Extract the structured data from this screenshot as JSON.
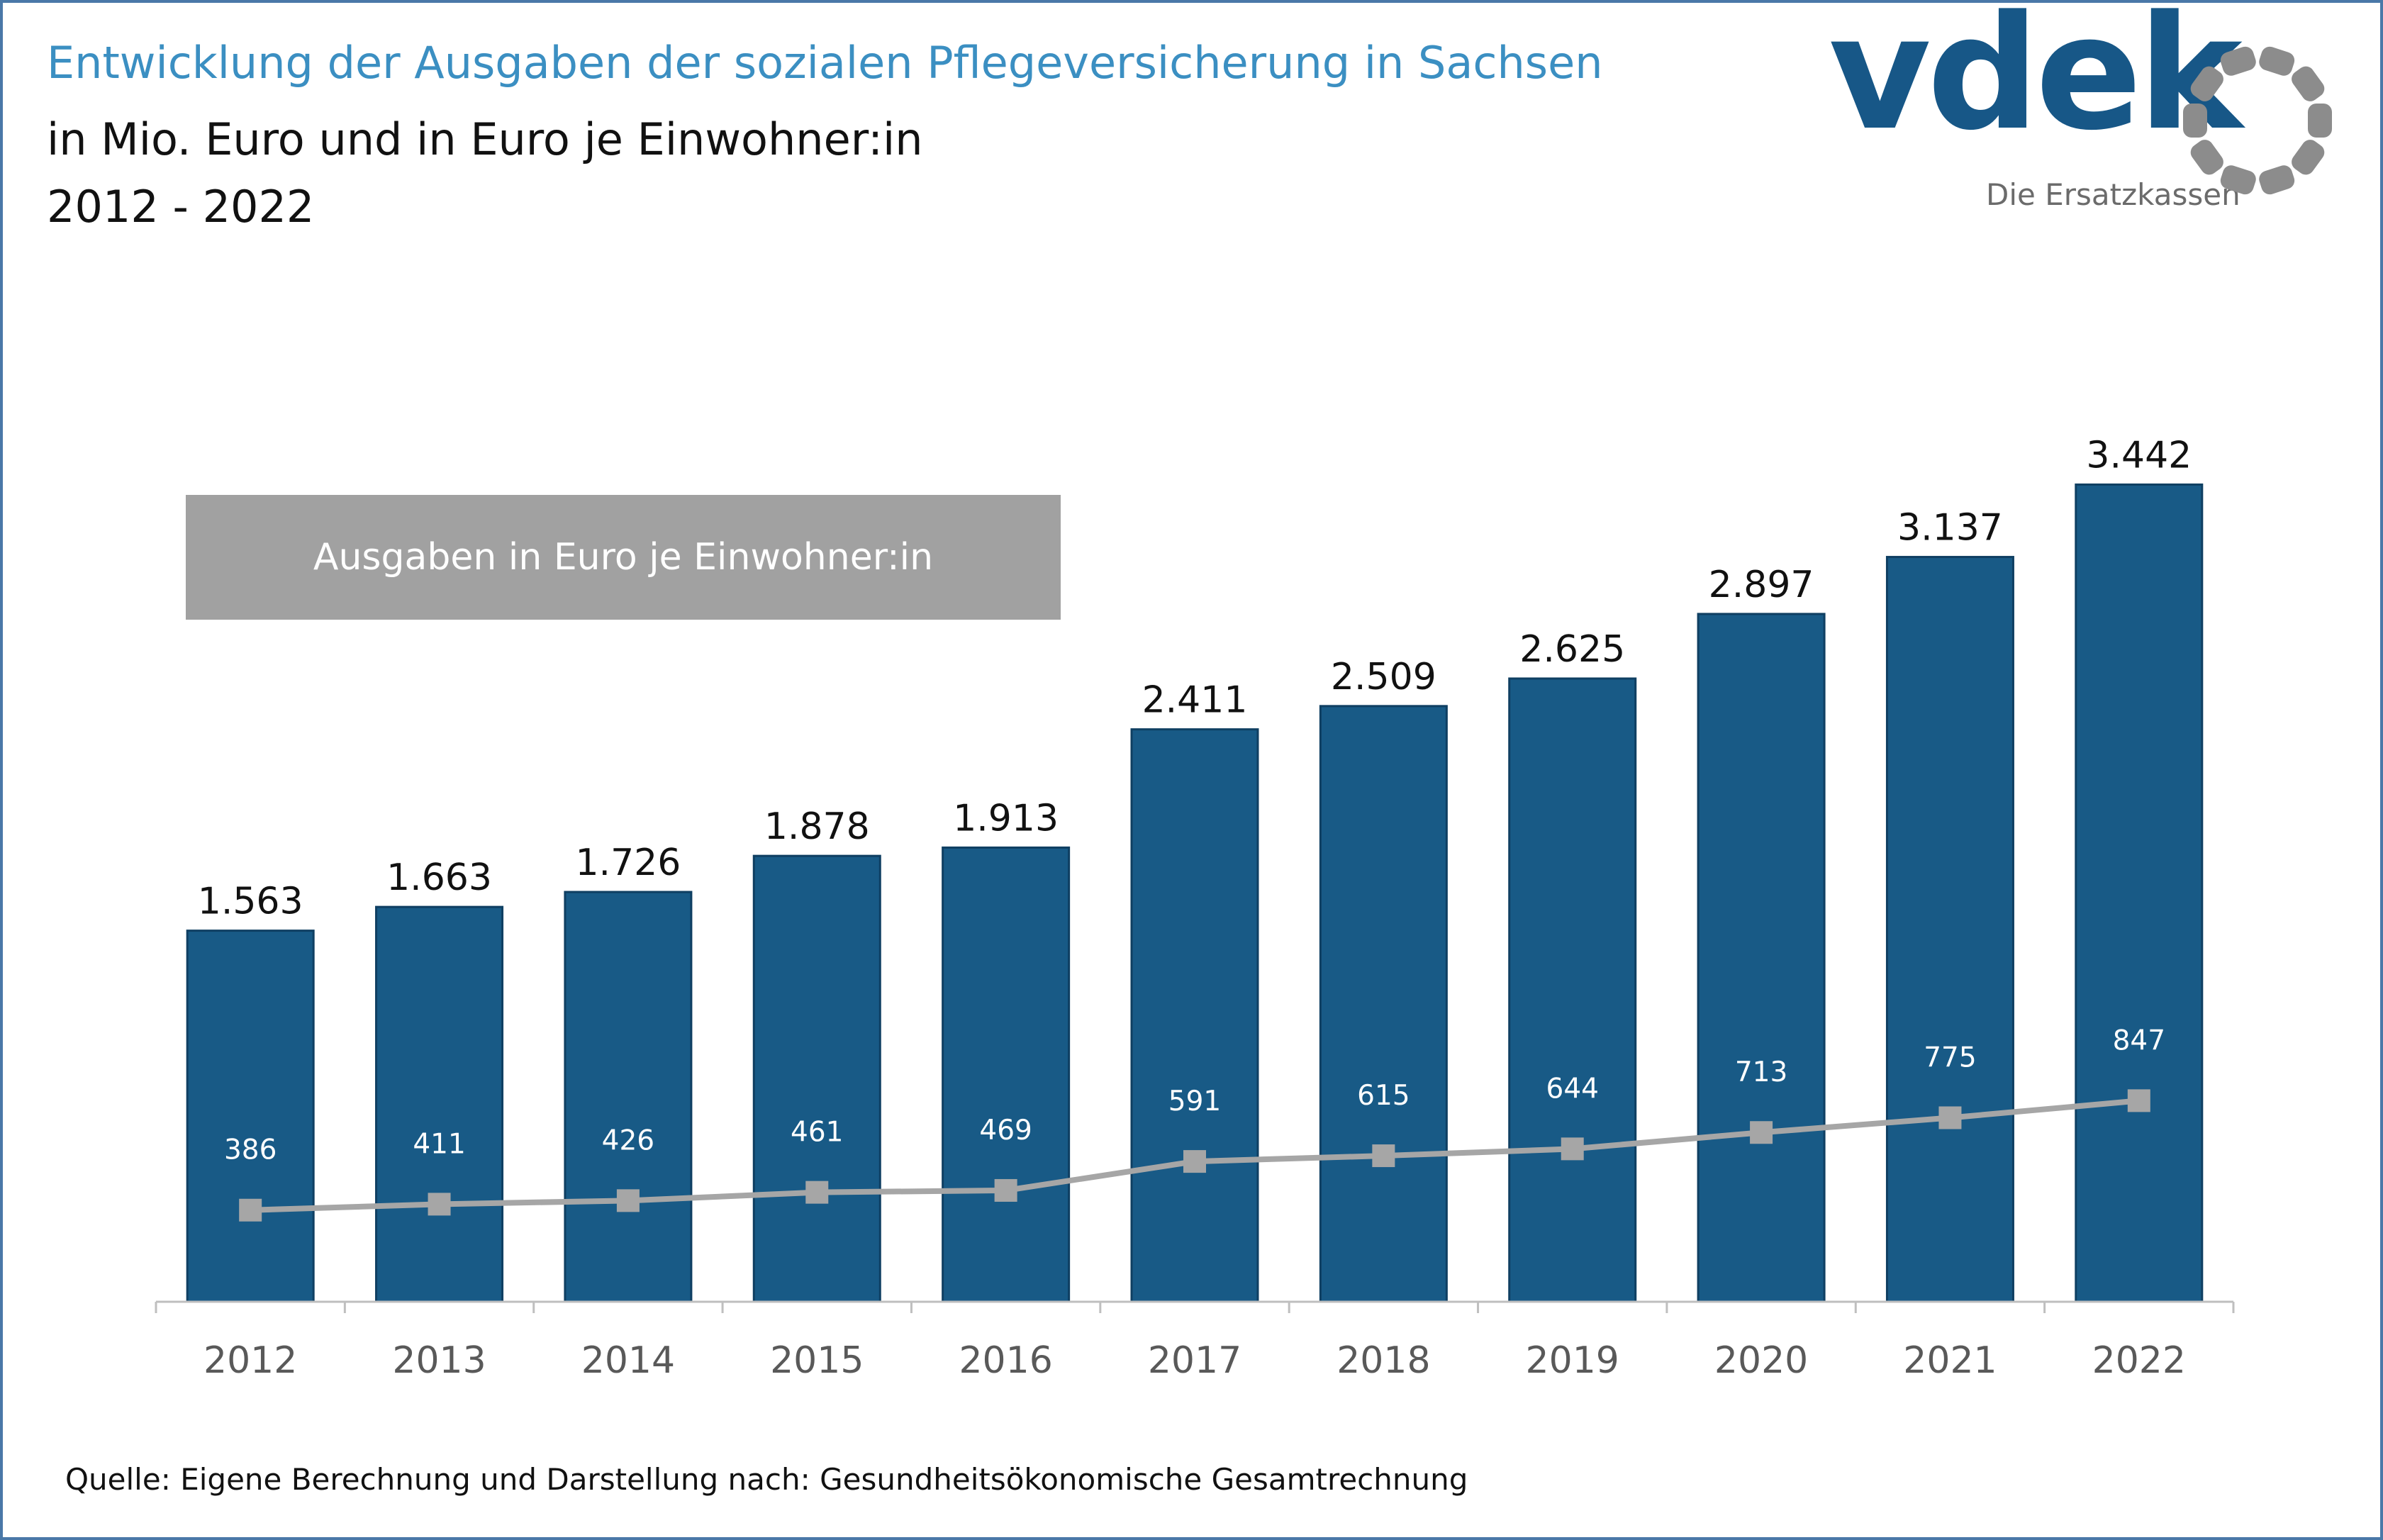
{
  "title": "Entwicklung der Ausgaben der sozialen Pflegeversicherung in Sachsen",
  "subtitle": "in Mio. Euro und in Euro je Einwohner:in",
  "period": "2012 - 2022",
  "source": "Quelle: Eigene Berechnung und Darstellung nach: Gesundheitsökonomische Gesamtrechnung",
  "logo": {
    "word": "vdek",
    "tagline": "Die Ersatzkassen",
    "colors": {
      "word": "#175787",
      "ring": "#8c8c8c",
      "tagline": "#6b6b6b"
    }
  },
  "legend": {
    "label": "Ausgaben in Euro je Einwohner:in"
  },
  "colors": {
    "title": "#3b8fc2",
    "bar": "#185a86",
    "line": "#a6a6a6",
    "legend_box": "#a1a1a1",
    "frame": "#4a78a8"
  },
  "chart_data": {
    "type": "bar",
    "categories": [
      "2012",
      "2013",
      "2014",
      "2015",
      "2016",
      "2017",
      "2018",
      "2019",
      "2020",
      "2021",
      "2022"
    ],
    "series": [
      {
        "type": "bar",
        "values": [
          1563,
          1663,
          1726,
          1878,
          1913,
          2411,
          2509,
          2625,
          2897,
          3137,
          3442
        ],
        "labels": [
          "1.563",
          "1.663",
          "1.726",
          "1.878",
          "1.913",
          "2.411",
          "2.509",
          "2.625",
          "2.897",
          "3.137",
          "3.442"
        ]
      },
      {
        "name": "Ausgaben in Euro je Einwohner:in",
        "type": "line",
        "marker": "square",
        "values": [
          386,
          411,
          426,
          461,
          469,
          591,
          615,
          644,
          713,
          775,
          847
        ],
        "labels": [
          "386",
          "411",
          "426",
          "461",
          "469",
          "591",
          "615",
          "644",
          "713",
          "775",
          "847"
        ]
      }
    ],
    "ylim": [
      0,
      3500
    ],
    "y2lim": [
      0,
      3500
    ],
    "grid": false,
    "legend_position": "top-left",
    "xlabel": "",
    "ylabel": ""
  }
}
